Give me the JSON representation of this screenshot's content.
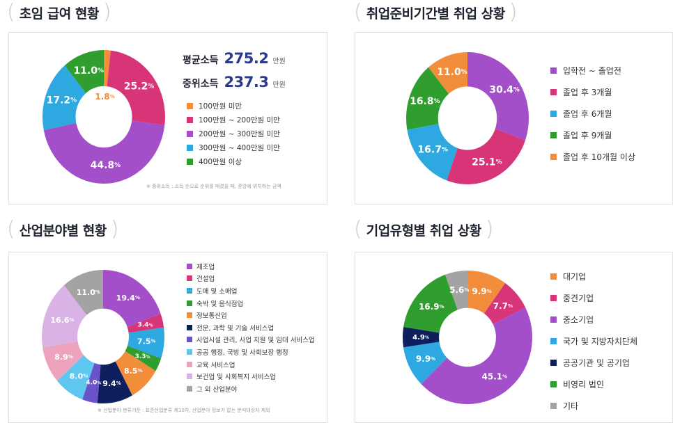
{
  "sections": {
    "income": {
      "title": "초임 급여 현황"
    },
    "period": {
      "title": "취업준비기간별 취업 상황"
    },
    "industry": {
      "title": "산업분야별 현황"
    },
    "company": {
      "title": "기업유형별 취업 상황"
    }
  },
  "stats": {
    "avg_label": "평균소득",
    "avg_value": "275.2",
    "avg_unit": "만원",
    "median_label": "중위소득",
    "median_value": "237.3",
    "median_unit": "만원"
  },
  "notes": {
    "income": "※ 중위소득 : 소득 순으로 순위를 매겼을 때, 중앙에 위치하는 금액",
    "industry": "※ 산업분야 분류기준 : 표준산업분류 제10차, 산업분야 정보가 없는 분석대상자 제외"
  },
  "chart_data": [
    {
      "type": "pie",
      "title": "초임 급여 현황",
      "categories": [
        "100만원 미만",
        "100만원 ~ 200만원 미만",
        "200만원 ~ 300만원 미만",
        "300만원 ~ 400만원 미만",
        "400만원 이상"
      ],
      "values": [
        1.8,
        25.2,
        44.8,
        17.2,
        11.0
      ],
      "labels": [
        "1.8",
        "25.2",
        "44.8",
        "17.2",
        "11.0"
      ],
      "colors": [
        "#f28d3c",
        "#d73578",
        "#a24fc9",
        "#2ea8e0",
        "#2f9e2f"
      ],
      "label_colors": [
        "#f28d3c",
        "#ffffff",
        "#ffffff",
        "#ffffff",
        "#ffffff"
      ]
    },
    {
      "type": "pie",
      "title": "취업준비기간별 취업 상황",
      "categories": [
        "입학전 ~ 졸업전",
        "졸업 후 3개월",
        "졸업 후 6개월",
        "졸업 후 9개월",
        "졸업 후 10개월 이상"
      ],
      "values": [
        30.4,
        25.1,
        16.7,
        16.8,
        11.0
      ],
      "labels": [
        "30.4",
        "25.1",
        "16.7",
        "16.8",
        "11.0"
      ],
      "colors": [
        "#a24fc9",
        "#d73578",
        "#2ea8e0",
        "#2f9e2f",
        "#f28d3c"
      ]
    },
    {
      "type": "pie",
      "title": "산업분야별 현황",
      "categories": [
        "제조업",
        "건설업",
        "도매 및 소매업",
        "숙박 및 음식점업",
        "정보통신업",
        "전문, 과학 및 기술 서비스업",
        "사업시설 관리, 사업 지원 및 임대 서비스업",
        "공공 행정, 국방 및 사회보장 행정",
        "교육 서비스업",
        "보건업 및 사회복지 서비스업",
        "그 외 산업분야"
      ],
      "values": [
        19.4,
        3.4,
        7.5,
        3.3,
        8.5,
        9.4,
        4.0,
        8.0,
        8.9,
        16.6,
        11.0
      ],
      "labels": [
        "19.4",
        "3.4",
        "7.5",
        "3.3",
        "8.5",
        "9.4",
        "4.0",
        "8.0",
        "8.9",
        "16.6",
        "11.0"
      ],
      "colors": [
        "#a24fc9",
        "#d73578",
        "#2ea8e0",
        "#2f9e2f",
        "#f28d3c",
        "#0d1f5c",
        "#6a52c8",
        "#5ec6ef",
        "#eda3bd",
        "#d9b3e6",
        "#a3a3a3"
      ]
    },
    {
      "type": "pie",
      "title": "기업유형별 취업 상황",
      "categories": [
        "대기업",
        "중견기업",
        "중소기업",
        "국가 및 지방자치단체",
        "공공기관 및 공기업",
        "비영리 법인",
        "기타"
      ],
      "values": [
        9.9,
        7.7,
        45.1,
        9.9,
        4.9,
        16.9,
        5.6
      ],
      "labels": [
        "9.9",
        "7.7",
        "45.1",
        "9.9",
        "4.9",
        "16.9",
        "5.6"
      ],
      "colors": [
        "#f28d3c",
        "#d73578",
        "#a24fc9",
        "#2ea8e0",
        "#0d1f5c",
        "#2f9e2f",
        "#a3a3a3"
      ]
    }
  ]
}
